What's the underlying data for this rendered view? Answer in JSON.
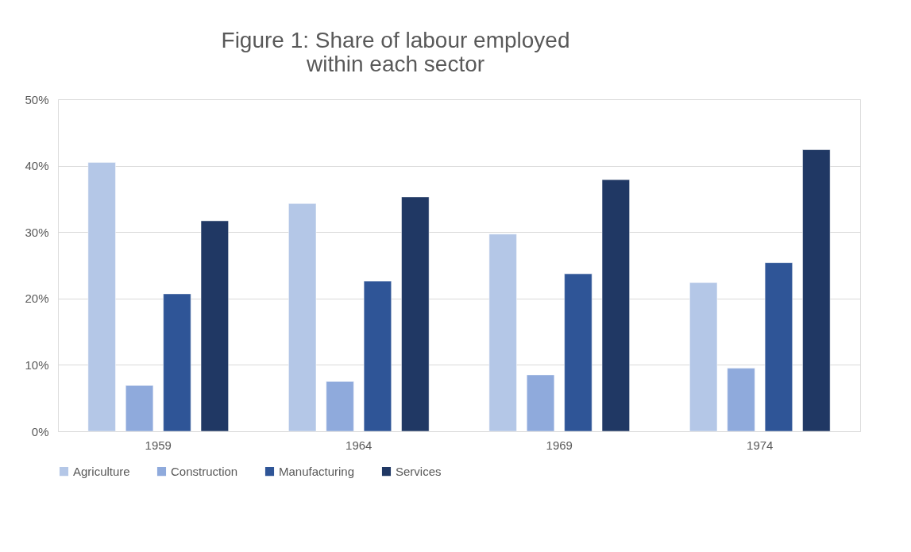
{
  "chart_data": {
    "type": "bar",
    "title": [
      "Figure 1: Share of labour employed",
      "within each sector"
    ],
    "categories": [
      "1959",
      "1964",
      "1969",
      "1974"
    ],
    "series": [
      {
        "name": "Agriculture",
        "color": "#b4c7e7",
        "values": [
          40.5,
          34.3,
          29.7,
          22.4
        ]
      },
      {
        "name": "Construction",
        "color": "#8faadc",
        "values": [
          6.9,
          7.5,
          8.5,
          9.5
        ]
      },
      {
        "name": "Manufacturing",
        "color": "#2f5597",
        "values": [
          20.7,
          22.6,
          23.7,
          25.4
        ]
      },
      {
        "name": "Services",
        "color": "#203864",
        "values": [
          31.7,
          35.3,
          37.9,
          42.4
        ]
      }
    ],
    "ylim": [
      0,
      50
    ],
    "yticks": [
      {
        "value": 0,
        "label": "0%"
      },
      {
        "value": 10,
        "label": "10%"
      },
      {
        "value": 20,
        "label": "20%"
      },
      {
        "value": 30,
        "label": "30%"
      },
      {
        "value": 40,
        "label": "40%"
      },
      {
        "value": 50,
        "label": "50%"
      }
    ],
    "grid": "y",
    "legend": "bottom"
  }
}
